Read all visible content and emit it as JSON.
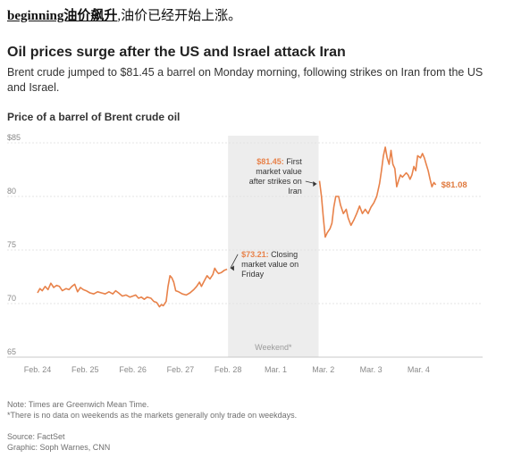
{
  "kicker": {
    "underlined": "beginning油价飙升",
    "rest": ",油价已经开始上涨。"
  },
  "headline": "Oil prices surge after the US and Israel attack Iran",
  "dek": "Brent crude jumped to $81.45 a barrel on Monday morning, following strikes on Iran from the US and Israel.",
  "chart_data": {
    "type": "line",
    "title": "Price of a barrel of Brent crude oil",
    "y_ticks": [
      "$85",
      "80",
      "75",
      "70",
      "65"
    ],
    "ylim": [
      65,
      85
    ],
    "x_ticks": [
      "Feb. 24",
      "Feb. 25",
      "Feb. 26",
      "Feb. 27",
      "Feb. 28",
      "Mar. 1",
      "Mar. 2",
      "Mar. 3",
      "Mar. 4"
    ],
    "xlim": [
      0,
      8.9
    ],
    "grid": true,
    "weekend_band": {
      "from": 4.0,
      "to": 5.9,
      "label": "Weekend*"
    },
    "series": [
      {
        "color": "#e8824a",
        "points": [
          [
            0.0,
            71.0
          ],
          [
            0.05,
            71.4
          ],
          [
            0.1,
            71.2
          ],
          [
            0.16,
            71.6
          ],
          [
            0.22,
            71.3
          ],
          [
            0.28,
            71.9
          ],
          [
            0.34,
            71.5
          ],
          [
            0.4,
            71.7
          ],
          [
            0.46,
            71.6
          ],
          [
            0.52,
            71.2
          ],
          [
            0.6,
            71.4
          ],
          [
            0.66,
            71.3
          ],
          [
            0.72,
            71.6
          ],
          [
            0.78,
            71.8
          ],
          [
            0.84,
            71.1
          ],
          [
            0.9,
            71.5
          ],
          [
            0.96,
            71.3
          ],
          [
            1.02,
            71.2
          ],
          [
            1.1,
            71.0
          ],
          [
            1.18,
            70.9
          ],
          [
            1.26,
            71.1
          ],
          [
            1.34,
            71.0
          ],
          [
            1.42,
            70.9
          ],
          [
            1.5,
            71.1
          ],
          [
            1.58,
            70.9
          ],
          [
            1.64,
            71.2
          ],
          [
            1.7,
            71.0
          ],
          [
            1.78,
            70.7
          ],
          [
            1.86,
            70.8
          ],
          [
            1.94,
            70.6
          ],
          [
            2.0,
            70.7
          ],
          [
            2.06,
            70.8
          ],
          [
            2.12,
            70.5
          ],
          [
            2.18,
            70.6
          ],
          [
            2.24,
            70.4
          ],
          [
            2.3,
            70.6
          ],
          [
            2.38,
            70.5
          ],
          [
            2.44,
            70.2
          ],
          [
            2.5,
            70.1
          ],
          [
            2.56,
            69.7
          ],
          [
            2.6,
            69.9
          ],
          [
            2.64,
            69.8
          ],
          [
            2.7,
            70.2
          ],
          [
            2.74,
            71.6
          ],
          [
            2.78,
            72.6
          ],
          [
            2.82,
            72.4
          ],
          [
            2.86,
            72.0
          ],
          [
            2.9,
            71.2
          ],
          [
            2.96,
            71.1
          ],
          [
            3.04,
            70.9
          ],
          [
            3.12,
            70.8
          ],
          [
            3.2,
            71.0
          ],
          [
            3.28,
            71.3
          ],
          [
            3.34,
            71.6
          ],
          [
            3.4,
            72.0
          ],
          [
            3.44,
            71.6
          ],
          [
            3.5,
            72.1
          ],
          [
            3.56,
            72.6
          ],
          [
            3.62,
            72.3
          ],
          [
            3.68,
            72.7
          ],
          [
            3.72,
            73.3
          ],
          [
            3.76,
            73.0
          ],
          [
            3.8,
            72.8
          ],
          [
            3.86,
            72.9
          ],
          [
            3.92,
            73.1
          ],
          [
            3.98,
            73.21
          ],
          [
            5.92,
            81.45
          ],
          [
            5.96,
            80.0
          ],
          [
            6.0,
            78.0
          ],
          [
            6.04,
            76.2
          ],
          [
            6.08,
            76.6
          ],
          [
            6.14,
            77.0
          ],
          [
            6.18,
            77.5
          ],
          [
            6.22,
            79.0
          ],
          [
            6.26,
            80.0
          ],
          [
            6.32,
            80.0
          ],
          [
            6.36,
            79.2
          ],
          [
            6.42,
            78.4
          ],
          [
            6.48,
            78.8
          ],
          [
            6.52,
            78.0
          ],
          [
            6.58,
            77.3
          ],
          [
            6.64,
            77.8
          ],
          [
            6.7,
            78.4
          ],
          [
            6.76,
            79.1
          ],
          [
            6.82,
            78.4
          ],
          [
            6.88,
            78.8
          ],
          [
            6.94,
            78.4
          ],
          [
            7.0,
            79.0
          ],
          [
            7.06,
            79.4
          ],
          [
            7.12,
            80.0
          ],
          [
            7.18,
            81.2
          ],
          [
            7.22,
            82.4
          ],
          [
            7.26,
            83.8
          ],
          [
            7.3,
            84.6
          ],
          [
            7.34,
            83.6
          ],
          [
            7.38,
            83.0
          ],
          [
            7.42,
            84.3
          ],
          [
            7.46,
            83.0
          ],
          [
            7.5,
            82.6
          ],
          [
            7.54,
            80.9
          ],
          [
            7.58,
            81.5
          ],
          [
            7.62,
            82.0
          ],
          [
            7.66,
            81.8
          ],
          [
            7.7,
            82.0
          ],
          [
            7.74,
            82.2
          ],
          [
            7.78,
            82.0
          ],
          [
            7.82,
            81.6
          ],
          [
            7.86,
            82.0
          ],
          [
            7.9,
            82.8
          ],
          [
            7.94,
            82.4
          ],
          [
            7.98,
            83.8
          ],
          [
            8.04,
            83.6
          ],
          [
            8.08,
            84.0
          ],
          [
            8.12,
            83.6
          ],
          [
            8.16,
            83.0
          ],
          [
            8.2,
            82.4
          ],
          [
            8.24,
            81.6
          ],
          [
            8.28,
            80.9
          ],
          [
            8.32,
            81.3
          ],
          [
            8.36,
            81.08
          ]
        ]
      }
    ],
    "annotations": [
      {
        "value": "$81.45:",
        "text": [
          "First",
          "market value",
          "after strikes on",
          "Iran"
        ]
      },
      {
        "value": "$73.21:",
        "text": [
          "Closing",
          "market value on",
          "Friday"
        ]
      }
    ],
    "end_label": "$81.08"
  },
  "notes": {
    "note1": "Note: Times are Greenwich Mean Time.",
    "note2": "*There is no data on weekends as the markets generally only trade on weekdays.",
    "source": "Source: FactSet",
    "graphic": "Graphic: Soph Warnes, CNN"
  }
}
